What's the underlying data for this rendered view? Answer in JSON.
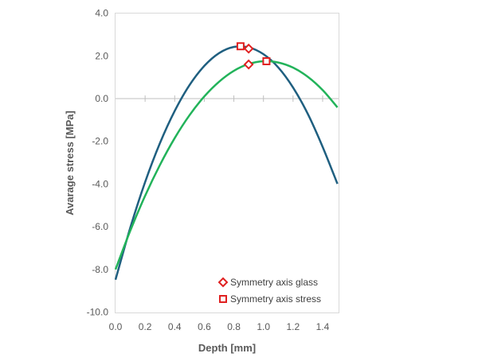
{
  "chart_data": {
    "type": "line",
    "title": "",
    "xlabel": "Depth [mm]",
    "ylabel": "Avarage stress [MPa]",
    "xlim": [
      0,
      1.5
    ],
    "ylim": [
      -10,
      4
    ],
    "x_ticks": [
      "0.0",
      "0.2",
      "0.4",
      "0.6",
      "0.8",
      "1.0",
      "1.2",
      "1.4"
    ],
    "y_ticks": [
      "4.0",
      "2.0",
      "0.0",
      "-2.0",
      "-4.0",
      "-6.0",
      "-8.0",
      "-10.0"
    ],
    "grid": false,
    "legend_position": "bottom-right",
    "x": [
      0,
      0.1,
      0.2,
      0.3,
      0.4,
      0.5,
      0.6,
      0.7,
      0.8,
      0.9,
      1.0,
      1.1,
      1.2,
      1.3,
      1.4,
      1.5
    ],
    "series": [
      {
        "color": "#1f5f80",
        "values": [
          -8.48,
          -6.04,
          -3.91,
          -2.09,
          -0.58,
          0.63,
          1.53,
          2.13,
          2.42,
          2.4,
          2.08,
          1.46,
          0.52,
          -0.72,
          -2.26,
          -3.99
        ]
      },
      {
        "color": "#22b35a",
        "values": [
          -8.0,
          -6.18,
          -4.55,
          -3.11,
          -1.85,
          -0.78,
          0.1,
          0.79,
          1.3,
          1.62,
          1.75,
          1.69,
          1.45,
          1.02,
          0.4,
          -0.41
        ]
      }
    ],
    "markers": [
      {
        "name": "Symmetry axis glass",
        "shape": "diamond",
        "color": "#e02020",
        "points": [
          [
            0.9,
            2.34
          ],
          [
            0.9,
            1.6
          ]
        ]
      },
      {
        "name": "Symmetry axis stress",
        "shape": "square",
        "color": "#e02020",
        "points": [
          [
            0.845,
            2.45
          ],
          [
            1.02,
            1.75
          ]
        ]
      }
    ]
  }
}
